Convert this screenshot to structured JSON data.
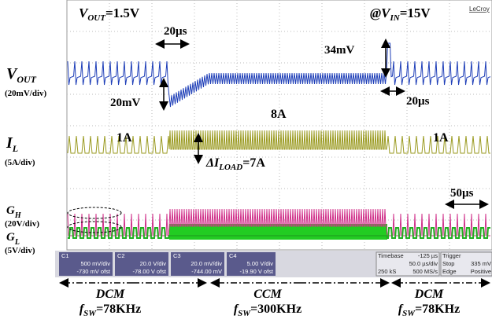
{
  "top": {
    "vout": [
      "V",
      "OUT",
      "=1.5V"
    ],
    "vin": [
      "@V",
      "IN",
      "=15V"
    ],
    "brand": "LeCroy"
  },
  "annotations": {
    "t_left": "20µs",
    "t_right": "20µs",
    "overshoot": "34mV",
    "undershoot": "20mV",
    "il_ccm": "8A",
    "il_dcm_left": "1A",
    "il_dcm_right": "1A",
    "delta": [
      "ΔI",
      "LOAD",
      "=7A"
    ],
    "period": "50µs"
  },
  "channels": [
    {
      "name": [
        "V",
        "OUT"
      ],
      "scale": "(20mV/div)"
    },
    {
      "name": [
        "I",
        "L"
      ],
      "scale": "(5A/div)"
    },
    {
      "name": [
        "G",
        "H"
      ],
      "scale": "(20V/div)"
    },
    {
      "name": [
        "G",
        "L"
      ],
      "scale": "(5V/div)"
    }
  ],
  "info_bar": {
    "c1": [
      "C1",
      "500 mV/div",
      "-730 mV ofst"
    ],
    "c2": [
      "C2",
      "20.0 V/div",
      "-78.00 V ofst"
    ],
    "c3": [
      "C3",
      "20.0 mV/div",
      "-744.00 mV"
    ],
    "c4": [
      "C4",
      "5.00 V/div",
      "-19.90 V ofst"
    ],
    "timebase": [
      "Timebase",
      "-125 µs",
      "50.0 µs/div",
      "250 kS",
      "500 MS/s"
    ],
    "trigger": [
      "Trigger",
      "Stop",
      "335 mV",
      "Edge",
      "Positive"
    ]
  },
  "modes": [
    {
      "mode": "DCM",
      "f": [
        "f",
        "SW",
        "=78KHz"
      ]
    },
    {
      "mode": "CCM",
      "f": [
        "f",
        "SW",
        "=300KHz"
      ]
    },
    {
      "mode": "DCM",
      "f": [
        "f",
        "SW",
        "=78KHz"
      ]
    }
  ]
}
